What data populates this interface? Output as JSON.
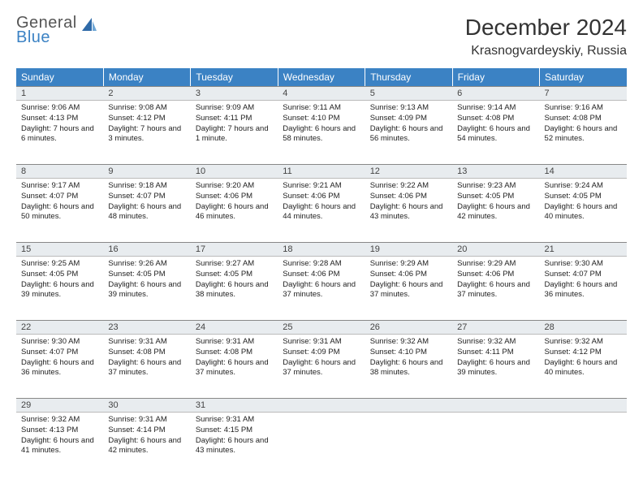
{
  "logo": {
    "word1": "General",
    "word2": "Blue",
    "sail_color": "#2f6aa8"
  },
  "title": "December 2024",
  "location": "Krasnogvardeyskiy, Russia",
  "day_headers": [
    "Sunday",
    "Monday",
    "Tuesday",
    "Wednesday",
    "Thursday",
    "Friday",
    "Saturday"
  ],
  "header_bg": "#3b82c4",
  "header_fg": "#ffffff",
  "daynum_bg": "#e8ecef",
  "rule_color": "#888888",
  "weeks": [
    [
      {
        "n": 1,
        "sr": "9:06 AM",
        "ss": "4:13 PM",
        "dl": "7 hours and 6 minutes."
      },
      {
        "n": 2,
        "sr": "9:08 AM",
        "ss": "4:12 PM",
        "dl": "7 hours and 3 minutes."
      },
      {
        "n": 3,
        "sr": "9:09 AM",
        "ss": "4:11 PM",
        "dl": "7 hours and 1 minute."
      },
      {
        "n": 4,
        "sr": "9:11 AM",
        "ss": "4:10 PM",
        "dl": "6 hours and 58 minutes."
      },
      {
        "n": 5,
        "sr": "9:13 AM",
        "ss": "4:09 PM",
        "dl": "6 hours and 56 minutes."
      },
      {
        "n": 6,
        "sr": "9:14 AM",
        "ss": "4:08 PM",
        "dl": "6 hours and 54 minutes."
      },
      {
        "n": 7,
        "sr": "9:16 AM",
        "ss": "4:08 PM",
        "dl": "6 hours and 52 minutes."
      }
    ],
    [
      {
        "n": 8,
        "sr": "9:17 AM",
        "ss": "4:07 PM",
        "dl": "6 hours and 50 minutes."
      },
      {
        "n": 9,
        "sr": "9:18 AM",
        "ss": "4:07 PM",
        "dl": "6 hours and 48 minutes."
      },
      {
        "n": 10,
        "sr": "9:20 AM",
        "ss": "4:06 PM",
        "dl": "6 hours and 46 minutes."
      },
      {
        "n": 11,
        "sr": "9:21 AM",
        "ss": "4:06 PM",
        "dl": "6 hours and 44 minutes."
      },
      {
        "n": 12,
        "sr": "9:22 AM",
        "ss": "4:06 PM",
        "dl": "6 hours and 43 minutes."
      },
      {
        "n": 13,
        "sr": "9:23 AM",
        "ss": "4:05 PM",
        "dl": "6 hours and 42 minutes."
      },
      {
        "n": 14,
        "sr": "9:24 AM",
        "ss": "4:05 PM",
        "dl": "6 hours and 40 minutes."
      }
    ],
    [
      {
        "n": 15,
        "sr": "9:25 AM",
        "ss": "4:05 PM",
        "dl": "6 hours and 39 minutes."
      },
      {
        "n": 16,
        "sr": "9:26 AM",
        "ss": "4:05 PM",
        "dl": "6 hours and 39 minutes."
      },
      {
        "n": 17,
        "sr": "9:27 AM",
        "ss": "4:05 PM",
        "dl": "6 hours and 38 minutes."
      },
      {
        "n": 18,
        "sr": "9:28 AM",
        "ss": "4:06 PM",
        "dl": "6 hours and 37 minutes."
      },
      {
        "n": 19,
        "sr": "9:29 AM",
        "ss": "4:06 PM",
        "dl": "6 hours and 37 minutes."
      },
      {
        "n": 20,
        "sr": "9:29 AM",
        "ss": "4:06 PM",
        "dl": "6 hours and 37 minutes."
      },
      {
        "n": 21,
        "sr": "9:30 AM",
        "ss": "4:07 PM",
        "dl": "6 hours and 36 minutes."
      }
    ],
    [
      {
        "n": 22,
        "sr": "9:30 AM",
        "ss": "4:07 PM",
        "dl": "6 hours and 36 minutes."
      },
      {
        "n": 23,
        "sr": "9:31 AM",
        "ss": "4:08 PM",
        "dl": "6 hours and 37 minutes."
      },
      {
        "n": 24,
        "sr": "9:31 AM",
        "ss": "4:08 PM",
        "dl": "6 hours and 37 minutes."
      },
      {
        "n": 25,
        "sr": "9:31 AM",
        "ss": "4:09 PM",
        "dl": "6 hours and 37 minutes."
      },
      {
        "n": 26,
        "sr": "9:32 AM",
        "ss": "4:10 PM",
        "dl": "6 hours and 38 minutes."
      },
      {
        "n": 27,
        "sr": "9:32 AM",
        "ss": "4:11 PM",
        "dl": "6 hours and 39 minutes."
      },
      {
        "n": 28,
        "sr": "9:32 AM",
        "ss": "4:12 PM",
        "dl": "6 hours and 40 minutes."
      }
    ],
    [
      {
        "n": 29,
        "sr": "9:32 AM",
        "ss": "4:13 PM",
        "dl": "6 hours and 41 minutes."
      },
      {
        "n": 30,
        "sr": "9:31 AM",
        "ss": "4:14 PM",
        "dl": "6 hours and 42 minutes."
      },
      {
        "n": 31,
        "sr": "9:31 AM",
        "ss": "4:15 PM",
        "dl": "6 hours and 43 minutes."
      },
      null,
      null,
      null,
      null
    ]
  ],
  "labels": {
    "sunrise": "Sunrise:",
    "sunset": "Sunset:",
    "daylight": "Daylight:"
  }
}
